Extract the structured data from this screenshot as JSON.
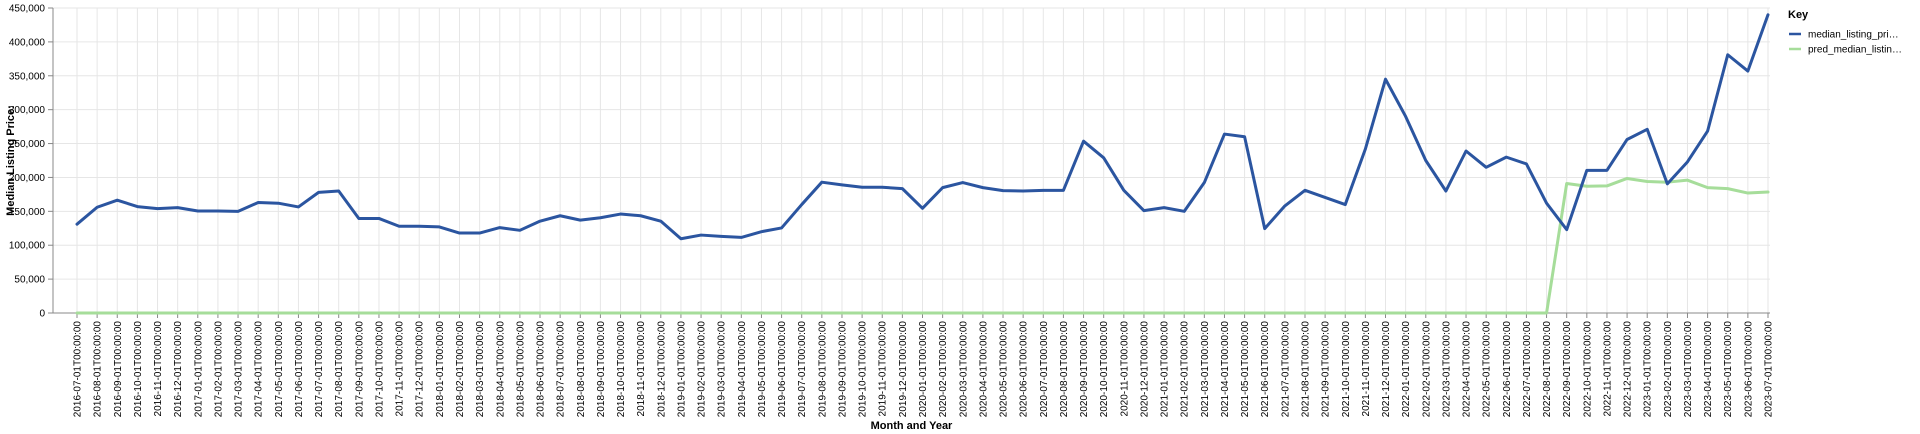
{
  "chart_data": {
    "type": "line",
    "xlabel": "Month and Year",
    "ylabel": "Median Listing Price:",
    "ylim": [
      0,
      450000
    ],
    "yticks": [
      0,
      50000,
      100000,
      150000,
      200000,
      250000,
      300000,
      350000,
      400000,
      450000
    ],
    "ytick_labels": [
      "0",
      "50,000",
      "100,000",
      "150,000",
      "200,000",
      "250,000",
      "300,000",
      "350,000",
      "400,000",
      "450,000"
    ],
    "grid": true,
    "legend": {
      "title": "Key",
      "placement": "top-right",
      "entries": [
        "median_listing_pri…",
        "pred_median_listin…"
      ]
    },
    "colors": {
      "median_listing_price": "#2b55a0",
      "pred_median_listing_price": "#a6dd9a",
      "grid": "#e6e6e6",
      "axis": "#888888"
    },
    "x": [
      "2016-07-01T00:00:00",
      "2016-08-01T00:00:00",
      "2016-09-01T00:00:00",
      "2016-10-01T00:00:00",
      "2016-11-01T00:00:00",
      "2016-12-01T00:00:00",
      "2017-01-01T00:00:00",
      "2017-02-01T00:00:00",
      "2017-03-01T00:00:00",
      "2017-04-01T00:00:00",
      "2017-05-01T00:00:00",
      "2017-06-01T00:00:00",
      "2017-07-01T00:00:00",
      "2017-08-01T00:00:00",
      "2017-09-01T00:00:00",
      "2017-10-01T00:00:00",
      "2017-11-01T00:00:00",
      "2017-12-01T00:00:00",
      "2018-01-01T00:00:00",
      "2018-02-01T00:00:00",
      "2018-03-01T00:00:00",
      "2018-04-01T00:00:00",
      "2018-05-01T00:00:00",
      "2018-06-01T00:00:00",
      "2018-07-01T00:00:00",
      "2018-08-01T00:00:00",
      "2018-09-01T00:00:00",
      "2018-10-01T00:00:00",
      "2018-11-01T00:00:00",
      "2018-12-01T00:00:00",
      "2019-01-01T00:00:00",
      "2019-02-01T00:00:00",
      "2019-03-01T00:00:00",
      "2019-04-01T00:00:00",
      "2019-05-01T00:00:00",
      "2019-06-01T00:00:00",
      "2019-07-01T00:00:00",
      "2019-08-01T00:00:00",
      "2019-09-01T00:00:00",
      "2019-10-01T00:00:00",
      "2019-11-01T00:00:00",
      "2019-12-01T00:00:00",
      "2020-01-01T00:00:00",
      "2020-02-01T00:00:00",
      "2020-03-01T00:00:00",
      "2020-04-01T00:00:00",
      "2020-05-01T00:00:00",
      "2020-06-01T00:00:00",
      "2020-07-01T00:00:00",
      "2020-08-01T00:00:00",
      "2020-09-01T00:00:00",
      "2020-10-01T00:00:00",
      "2020-11-01T00:00:00",
      "2020-12-01T00:00:00",
      "2021-01-01T00:00:00",
      "2021-02-01T00:00:00",
      "2021-03-01T00:00:00",
      "2021-04-01T00:00:00",
      "2021-05-01T00:00:00",
      "2021-06-01T00:00:00",
      "2021-07-01T00:00:00",
      "2021-08-01T00:00:00",
      "2021-09-01T00:00:00",
      "2021-10-01T00:00:00",
      "2021-11-01T00:00:00",
      "2021-12-01T00:00:00",
      "2022-01-01T00:00:00",
      "2022-02-01T00:00:00",
      "2022-03-01T00:00:00",
      "2022-04-01T00:00:00",
      "2022-05-01T00:00:00",
      "2022-06-01T00:00:00",
      "2022-07-01T00:00:00",
      "2022-08-01T00:00:00",
      "2022-09-01T00:00:00",
      "2022-10-01T00:00:00",
      "2022-11-01T00:00:00",
      "2022-12-01T00:00:00",
      "2023-01-01T00:00:00",
      "2023-02-01T00:00:00",
      "2023-03-01T00:00:00",
      "2023-04-01T00:00:00",
      "2023-05-01T00:00:00",
      "2023-06-01T00:00:00",
      "2023-07-01T00:00:00"
    ],
    "series": [
      {
        "name": "median_listing_pri…",
        "values": [
          131000,
          156000,
          166500,
          157000,
          154000,
          155500,
          150500,
          150500,
          150000,
          163000,
          162000,
          156500,
          178000,
          180000,
          139500,
          139500,
          128000,
          128000,
          127000,
          118000,
          118000,
          126000,
          122000,
          135500,
          143500,
          137000,
          140500,
          146000,
          143500,
          135500,
          109500,
          115000,
          113000,
          111500,
          120000,
          125500,
          160000,
          193000,
          189000,
          185500,
          185500,
          183500,
          154500,
          185000,
          192500,
          185000,
          180500,
          180000,
          181000,
          181000,
          253500,
          229000,
          181000,
          151000,
          155500,
          150000,
          192500,
          264000,
          260000,
          124500,
          158000,
          181000,
          170500,
          160000,
          242000,
          345000,
          290000,
          225000,
          180000,
          239000,
          215000,
          230000,
          220000,
          162000,
          123000,
          210500,
          210500,
          256000,
          271000,
          190500,
          223000,
          268500,
          381000,
          357000,
          440000
        ]
      },
      {
        "name": "pred_median_listin…",
        "values": [
          0,
          0,
          0,
          0,
          0,
          0,
          0,
          0,
          0,
          0,
          0,
          0,
          0,
          0,
          0,
          0,
          0,
          0,
          0,
          0,
          0,
          0,
          0,
          0,
          0,
          0,
          0,
          0,
          0,
          0,
          0,
          0,
          0,
          0,
          0,
          0,
          0,
          0,
          0,
          0,
          0,
          0,
          0,
          0,
          0,
          0,
          0,
          0,
          0,
          0,
          0,
          0,
          0,
          0,
          0,
          0,
          0,
          0,
          0,
          0,
          0,
          0,
          0,
          0,
          0,
          0,
          0,
          0,
          0,
          0,
          0,
          0,
          0,
          0,
          191000,
          187000,
          187500,
          198500,
          194000,
          193000,
          196000,
          185000,
          183500,
          177000,
          178500
        ]
      }
    ]
  }
}
